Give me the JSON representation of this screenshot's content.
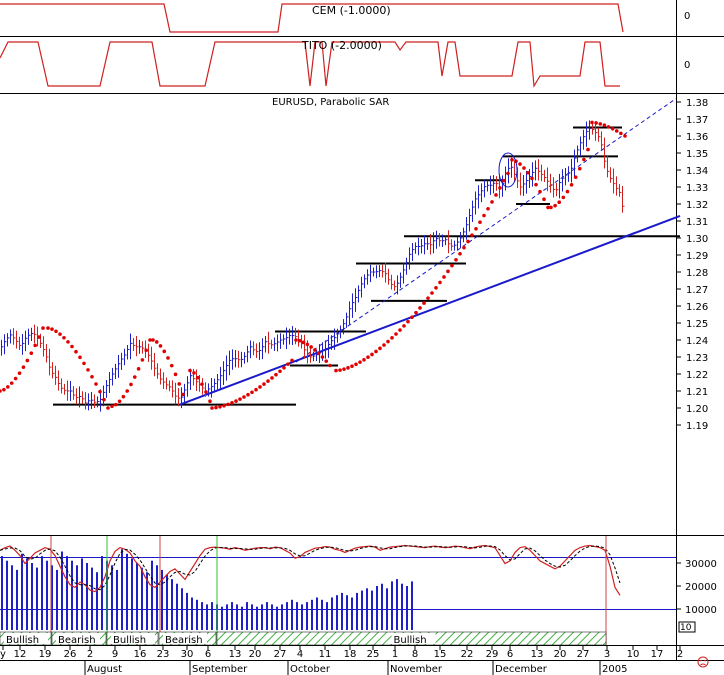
{
  "chart_data": {
    "type": "line",
    "title": "EURUSD, Parabolic SAR",
    "year_label": "2005",
    "price_axis": {
      "ylim": [
        1.185,
        1.385
      ],
      "ticks": [
        "1.38",
        "1.37",
        "1.36",
        "1.35",
        "1.34",
        "1.33",
        "1.32",
        "1.31",
        "1.30",
        "1.29",
        "1.28",
        "1.27",
        "1.26",
        "1.25",
        "1.24",
        "1.23",
        "1.22",
        "1.21",
        "1.20",
        "1.19"
      ]
    },
    "price_path": [
      [
        0,
        1.235
      ],
      [
        5,
        1.24
      ],
      [
        10,
        1.243
      ],
      [
        15,
        1.24
      ],
      [
        20,
        1.236
      ],
      [
        25,
        1.241
      ],
      [
        30,
        1.244
      ],
      [
        35,
        1.243
      ],
      [
        40,
        1.238
      ],
      [
        45,
        1.232
      ],
      [
        50,
        1.222
      ],
      [
        55,
        1.218
      ],
      [
        60,
        1.212
      ],
      [
        65,
        1.21
      ],
      [
        70,
        1.21
      ],
      [
        75,
        1.206
      ],
      [
        80,
        1.207
      ],
      [
        85,
        1.203
      ],
      [
        90,
        1.205
      ],
      [
        95,
        1.203
      ],
      [
        100,
        1.205
      ],
      [
        105,
        1.212
      ],
      [
        110,
        1.218
      ],
      [
        115,
        1.223
      ],
      [
        120,
        1.228
      ],
      [
        125,
        1.232
      ],
      [
        130,
        1.238
      ],
      [
        135,
        1.236
      ],
      [
        140,
        1.236
      ],
      [
        145,
        1.234
      ],
      [
        150,
        1.229
      ],
      [
        155,
        1.222
      ],
      [
        160,
        1.217
      ],
      [
        165,
        1.214
      ],
      [
        170,
        1.212
      ],
      [
        175,
        1.207
      ],
      [
        180,
        1.205
      ],
      [
        185,
        1.212
      ],
      [
        190,
        1.219
      ],
      [
        195,
        1.216
      ],
      [
        200,
        1.213
      ],
      [
        205,
        1.21
      ],
      [
        210,
        1.212
      ],
      [
        215,
        1.215
      ],
      [
        220,
        1.219
      ],
      [
        225,
        1.224
      ],
      [
        230,
        1.229
      ],
      [
        235,
        1.229
      ],
      [
        240,
        1.228
      ],
      [
        245,
        1.231
      ],
      [
        250,
        1.236
      ],
      [
        255,
        1.233
      ],
      [
        260,
        1.234
      ],
      [
        265,
        1.239
      ],
      [
        270,
        1.237
      ],
      [
        275,
        1.238
      ],
      [
        280,
        1.24
      ],
      [
        285,
        1.241
      ],
      [
        290,
        1.243
      ],
      [
        295,
        1.242
      ],
      [
        300,
        1.239
      ],
      [
        305,
        1.233
      ],
      [
        310,
        1.23
      ],
      [
        315,
        1.231
      ],
      [
        320,
        1.233
      ],
      [
        325,
        1.235
      ],
      [
        330,
        1.239
      ],
      [
        335,
        1.242
      ],
      [
        340,
        1.246
      ],
      [
        345,
        1.252
      ],
      [
        350,
        1.26
      ],
      [
        355,
        1.265
      ],
      [
        360,
        1.272
      ],
      [
        365,
        1.277
      ],
      [
        370,
        1.28
      ],
      [
        375,
        1.28
      ],
      [
        380,
        1.281
      ],
      [
        385,
        1.279
      ],
      [
        390,
        1.273
      ],
      [
        395,
        1.271
      ],
      [
        400,
        1.277
      ],
      [
        405,
        1.284
      ],
      [
        410,
        1.292
      ],
      [
        415,
        1.295
      ],
      [
        420,
        1.295
      ],
      [
        425,
        1.297
      ],
      [
        430,
        1.296
      ],
      [
        435,
        1.3
      ],
      [
        440,
        1.298
      ],
      [
        445,
        1.299
      ],
      [
        450,
        1.295
      ],
      [
        455,
        1.296
      ],
      [
        460,
        1.3
      ],
      [
        465,
        1.306
      ],
      [
        470,
        1.315
      ],
      [
        475,
        1.323
      ],
      [
        480,
        1.327
      ],
      [
        485,
        1.331
      ],
      [
        490,
        1.331
      ],
      [
        495,
        1.333
      ],
      [
        500,
        1.328
      ],
      [
        505,
        1.338
      ],
      [
        510,
        1.343
      ],
      [
        515,
        1.336
      ],
      [
        520,
        1.33
      ],
      [
        525,
        1.333
      ],
      [
        530,
        1.337
      ],
      [
        535,
        1.341
      ],
      [
        540,
        1.338
      ],
      [
        545,
        1.335
      ],
      [
        550,
        1.331
      ],
      [
        555,
        1.327
      ],
      [
        560,
        1.334
      ],
      [
        565,
        1.337
      ],
      [
        570,
        1.339
      ],
      [
        575,
        1.349
      ],
      [
        580,
        1.356
      ],
      [
        585,
        1.362
      ],
      [
        590,
        1.365
      ],
      [
        595,
        1.362
      ],
      [
        600,
        1.358
      ],
      [
        605,
        1.342
      ],
      [
        610,
        1.335
      ],
      [
        615,
        1.33
      ],
      [
        620,
        1.326
      ],
      [
        623,
        1.315
      ]
    ],
    "sar_segments": [
      {
        "from": 0,
        "to": 43,
        "start": 1.21,
        "end": 1.247,
        "side": "below"
      },
      {
        "from": 48,
        "to": 108,
        "start": 1.247,
        "end": 1.2,
        "side": "above"
      },
      {
        "from": 112,
        "to": 150,
        "start": 1.201,
        "end": 1.24,
        "side": "below"
      },
      {
        "from": 153,
        "to": 183,
        "start": 1.24,
        "end": 1.208,
        "side": "above"
      },
      {
        "from": 190,
        "to": 210,
        "start": 1.222,
        "end": 1.204,
        "side": "above"
      },
      {
        "from": 212,
        "to": 292,
        "start": 1.2,
        "end": 1.228,
        "side": "below"
      },
      {
        "from": 296,
        "to": 330,
        "start": 1.24,
        "end": 1.225,
        "side": "above"
      },
      {
        "from": 336,
        "to": 508,
        "start": 1.222,
        "end": 1.338,
        "side": "below"
      },
      {
        "from": 512,
        "to": 548,
        "start": 1.346,
        "end": 1.318,
        "side": "above"
      },
      {
        "from": 551,
        "to": 588,
        "start": 1.318,
        "end": 1.352,
        "side": "below"
      },
      {
        "from": 592,
        "to": 625,
        "start": 1.368,
        "end": 1.36,
        "side": "above"
      }
    ],
    "support_lines": [
      {
        "x1": 53,
        "x2": 296,
        "y": 1.202
      },
      {
        "x1": 275,
        "x2": 366,
        "y": 1.245
      },
      {
        "x1": 290,
        "x2": 338,
        "y": 1.225
      },
      {
        "x1": 356,
        "x2": 466,
        "y": 1.285
      },
      {
        "x1": 371,
        "x2": 447,
        "y": 1.263
      },
      {
        "x1": 404,
        "x2": 680,
        "y": 1.301
      },
      {
        "x1": 475,
        "x2": 503,
        "y": 1.334
      },
      {
        "x1": 503,
        "x2": 618,
        "y": 1.348
      },
      {
        "x1": 516,
        "x2": 550,
        "y": 1.32
      },
      {
        "x1": 573,
        "x2": 622,
        "y": 1.365
      }
    ],
    "trendline": {
      "x1": 180,
      "y1": 1.202,
      "x2": 680,
      "y2": 1.313
    },
    "dashed_trendline": {
      "x1": 296,
      "y1": 1.227,
      "x2": 676,
      "y2": 1.382
    },
    "ellipse": {
      "cx": 508,
      "y_center": 1.34,
      "y_half": 0.01,
      "rx": 9
    },
    "cem": {
      "label": "CEM (-1.0000)",
      "tick": "0",
      "pts": [
        [
          0,
          4
        ],
        [
          164,
          4
        ],
        [
          170,
          32
        ],
        [
          278,
          32
        ],
        [
          282,
          4
        ],
        [
          618,
          4
        ],
        [
          623,
          32
        ]
      ]
    },
    "tito": {
      "label": "TITO (-2.0000)",
      "tick": "0",
      "pts": [
        [
          0,
          58
        ],
        [
          8,
          42
        ],
        [
          38,
          42
        ],
        [
          48,
          86
        ],
        [
          100,
          86
        ],
        [
          110,
          42
        ],
        [
          152,
          42
        ],
        [
          160,
          86
        ],
        [
          205,
          86
        ],
        [
          215,
          42
        ],
        [
          305,
          42
        ],
        [
          310,
          86
        ],
        [
          315,
          42
        ],
        [
          322,
          42
        ],
        [
          326,
          86
        ],
        [
          332,
          42
        ],
        [
          395,
          42
        ],
        [
          400,
          50
        ],
        [
          406,
          42
        ],
        [
          438,
          42
        ],
        [
          442,
          76
        ],
        [
          448,
          42
        ],
        [
          455,
          42
        ],
        [
          460,
          76
        ],
        [
          512,
          76
        ],
        [
          518,
          42
        ],
        [
          530,
          42
        ],
        [
          534,
          86
        ],
        [
          540,
          76
        ],
        [
          580,
          76
        ],
        [
          585,
          42
        ],
        [
          600,
          42
        ],
        [
          605,
          86
        ],
        [
          620,
          86
        ]
      ]
    },
    "oscillator": {
      "ticks": [
        "30000",
        "20000",
        "10000"
      ],
      "x_start": 0,
      "x_step": 5,
      "stoch": [
        90,
        95,
        98,
        90,
        80,
        65,
        75,
        85,
        90,
        95,
        92,
        80,
        60,
        40,
        25,
        20,
        30,
        25,
        15,
        12,
        20,
        40,
        70,
        88,
        95,
        92,
        85,
        70,
        60,
        40,
        25,
        20,
        30,
        40,
        50,
        55,
        45,
        35,
        50,
        65,
        80,
        92,
        95,
        96,
        95,
        94,
        92,
        95,
        93,
        90,
        92,
        94,
        95,
        95,
        93,
        96,
        95,
        90,
        85,
        75,
        78,
        86,
        90,
        94,
        95,
        97,
        96,
        92,
        90,
        86,
        90,
        94,
        96,
        97,
        98,
        96,
        90,
        93,
        96,
        97,
        98,
        99,
        98,
        97,
        96,
        95,
        97,
        98,
        96,
        95,
        96,
        98,
        97,
        95,
        93,
        96,
        98,
        99,
        97,
        95,
        80,
        65,
        70,
        86,
        95,
        97,
        90,
        80,
        70,
        65,
        60,
        55,
        60,
        70,
        80,
        90,
        95,
        98,
        99,
        97,
        95,
        90,
        60,
        20,
        5
      ]
    },
    "volume": {
      "ticks_at": [
        30000,
        20000,
        10000
      ],
      "bars_x_start": 2,
      "bars_x_end": 413,
      "bars_step": 5,
      "bars": [
        33000,
        31000,
        29000,
        27000,
        34000,
        32000,
        30000,
        28000,
        33000,
        31000,
        29000,
        27000,
        35000,
        33000,
        31000,
        29000,
        32000,
        30000,
        28000,
        26000,
        33000,
        31000,
        29000,
        27000,
        36000,
        34000,
        32000,
        30000,
        28000,
        26000,
        31000,
        29000,
        27000,
        25000,
        23000,
        21000,
        19000,
        17000,
        15000,
        14000,
        13000,
        12000,
        13000,
        12000,
        11000,
        12000,
        13000,
        12000,
        11000,
        13000,
        12000,
        11000,
        12000,
        13000,
        12000,
        11000,
        12000,
        13000,
        14000,
        13000,
        12000,
        13000,
        14000,
        15000,
        14000,
        13000,
        15000,
        16000,
        17000,
        16000,
        15000,
        17000,
        18000,
        19000,
        18000,
        20000,
        21000,
        19000,
        22000,
        23000,
        21000,
        20000,
        22000,
        24000,
        22000,
        20000
      ]
    },
    "sentiment": [
      {
        "label": "Bullish",
        "x1": 0,
        "x2": 51
      },
      {
        "label": "Bearish",
        "x1": 52,
        "x2": 106
      },
      {
        "label": "Bullish",
        "x1": 107,
        "x2": 158
      },
      {
        "label": "Bearish",
        "x1": 159,
        "x2": 216
      },
      {
        "label": "Bullish",
        "x1": 217,
        "x2": 606
      }
    ],
    "signal_lines": [
      {
        "x": 51,
        "color": "#d04040"
      },
      {
        "x": 107,
        "color": "#30c030"
      },
      {
        "x": 160,
        "color": "#d04040"
      },
      {
        "x": 217,
        "color": "#30c030"
      },
      {
        "x": 606,
        "color": "#d04040"
      }
    ],
    "x_axis": {
      "days": [
        [
          "y",
          3
        ],
        [
          "12",
          20
        ],
        [
          "19",
          45
        ],
        [
          "26",
          70
        ],
        [
          "2",
          90
        ],
        [
          "9",
          115
        ],
        [
          "16",
          140
        ],
        [
          "23",
          163
        ],
        [
          "30",
          187
        ],
        [
          "6",
          208
        ],
        [
          "13",
          235
        ],
        [
          "20",
          255
        ],
        [
          "27",
          280
        ],
        [
          "4",
          300
        ],
        [
          "11",
          325
        ],
        [
          "18",
          350
        ],
        [
          "25",
          373
        ],
        [
          "1",
          395
        ],
        [
          "8",
          415
        ],
        [
          "15",
          440
        ],
        [
          "22",
          467
        ],
        [
          "29",
          492
        ],
        [
          "6",
          510
        ],
        [
          "13",
          537
        ],
        [
          "20",
          560
        ],
        [
          "27",
          583
        ],
        [
          "3",
          607
        ],
        [
          "10",
          633
        ],
        [
          "17",
          657
        ],
        [
          "2",
          680
        ]
      ],
      "months": [
        [
          "August",
          87
        ],
        [
          "September",
          192
        ],
        [
          "October",
          290
        ],
        [
          "November",
          390
        ],
        [
          "December",
          495
        ],
        [
          "2005",
          602
        ]
      ]
    },
    "axis_boxes": {
      "cem_bottom": "0",
      "osc_box": "10"
    },
    "colors": {
      "up": "#2020c8",
      "down": "#d02020",
      "sar": "#e00000",
      "panel_line": "#d02020",
      "trend": "#1a1acc",
      "support": "#000000",
      "osc_signal": "#000000",
      "hline": "#1a1acc"
    }
  }
}
